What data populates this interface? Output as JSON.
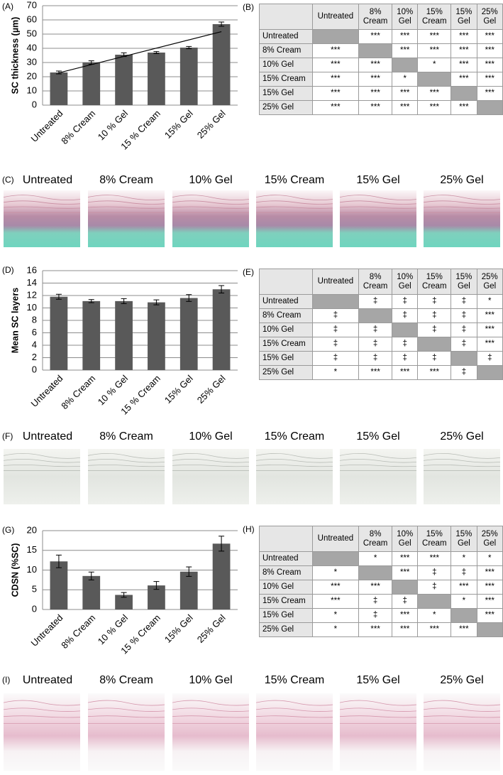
{
  "chart_data": [
    {
      "type": "bar",
      "label": "(A)",
      "y_label": "SC thickness (µm)",
      "categories": [
        "Untreated",
        "8% Cream",
        "10 % Gel",
        "15 % Cream",
        "15% Gel",
        "25% Gel"
      ],
      "values": [
        23,
        30,
        35.5,
        37,
        40.5,
        57
      ],
      "errors": [
        1,
        1.2,
        1.3,
        0.7,
        0.8,
        1.5
      ],
      "trendline": [
        22.7,
        51.7
      ],
      "color": "#595959",
      "ylim": [
        0,
        70
      ],
      "yticks": [
        0,
        10,
        20,
        30,
        40,
        50,
        60,
        70
      ],
      "grid": true
    },
    {
      "type": "bar",
      "label": "(D)",
      "y_label": "Mean SC layers",
      "categories": [
        "Untreated",
        "8% Cream",
        "10 % Gel",
        "15 % Cream",
        "15% Gel",
        "25% Gel"
      ],
      "values": [
        11.8,
        11.1,
        11.1,
        10.9,
        11.6,
        13.0
      ],
      "errors": [
        0.4,
        0.25,
        0.4,
        0.4,
        0.55,
        0.6
      ],
      "color": "#595959",
      "ylim": [
        0,
        16
      ],
      "yticks": [
        0,
        2,
        4,
        6,
        8,
        10,
        12,
        14,
        16
      ],
      "grid": true
    },
    {
      "type": "bar",
      "label": "(G)",
      "y_label": "CDSN (%SC)",
      "categories": [
        "Untreated",
        "8% Cream",
        "10 % Gel",
        "15 % Cream",
        "15% Gel",
        "25% Gel"
      ],
      "values": [
        12.2,
        8.5,
        3.7,
        6.1,
        9.6,
        16.7
      ],
      "errors": [
        1.6,
        1.0,
        0.6,
        1.0,
        1.2,
        1.9
      ],
      "color": "#595959",
      "ylim": [
        0,
        20
      ],
      "yticks": [
        0,
        5,
        10,
        15,
        20
      ],
      "grid": true
    }
  ],
  "tables": [
    {
      "label": "(B)",
      "columns": [
        "Untreated",
        "8% Cream",
        "10% Gel",
        "15% Cream",
        "15% Gel",
        "25% Gel"
      ],
      "rows": [
        {
          "label": "Untreated",
          "cells": [
            null,
            "***",
            "***",
            "***",
            "***",
            "***"
          ]
        },
        {
          "label": "8% Cream",
          "cells": [
            "***",
            null,
            "***",
            "***",
            "***",
            "***"
          ]
        },
        {
          "label": "10% Gel",
          "cells": [
            "***",
            "***",
            null,
            "*",
            "***",
            "***"
          ]
        },
        {
          "label": "15% Cream",
          "cells": [
            "***",
            "***",
            "*",
            null,
            "***",
            "***"
          ]
        },
        {
          "label": "15% Gel",
          "cells": [
            "***",
            "***",
            "***",
            "***",
            null,
            "***"
          ]
        },
        {
          "label": "25% Gel",
          "cells": [
            "***",
            "***",
            "***",
            "***",
            "***",
            null
          ]
        }
      ]
    },
    {
      "label": "(E)",
      "columns": [
        "Untreated",
        "8% Cream",
        "10% Gel",
        "15% Cream",
        "15% Gel",
        "25% Gel"
      ],
      "rows": [
        {
          "label": "Untreated",
          "cells": [
            null,
            "‡",
            "‡",
            "‡",
            "‡",
            "*"
          ]
        },
        {
          "label": "8% Cream",
          "cells": [
            "‡",
            null,
            "‡",
            "‡",
            "‡",
            "***"
          ]
        },
        {
          "label": "10% Gel",
          "cells": [
            "‡",
            "‡",
            null,
            "‡",
            "‡",
            "***"
          ]
        },
        {
          "label": "15% Cream",
          "cells": [
            "‡",
            "‡",
            "‡",
            null,
            "‡",
            "***"
          ]
        },
        {
          "label": "15% Gel",
          "cells": [
            "‡",
            "‡",
            "‡",
            "‡",
            null,
            "‡"
          ]
        },
        {
          "label": "25% Gel",
          "cells": [
            "*",
            "***",
            "***",
            "***",
            "‡",
            null
          ]
        }
      ]
    },
    {
      "label": "(H)",
      "columns": [
        "Untreated",
        "8% Cream",
        "10% Gel",
        "15% Cream",
        "15% Gel",
        "25% Gel"
      ],
      "rows": [
        {
          "label": "Untreated",
          "cells": [
            null,
            "*",
            "***",
            "***",
            "*",
            "*"
          ]
        },
        {
          "label": "8% Cream",
          "cells": [
            "*",
            null,
            "***",
            "‡",
            "‡",
            "***"
          ]
        },
        {
          "label": "10% Gel",
          "cells": [
            "***",
            "***",
            null,
            "‡",
            "***",
            "***"
          ]
        },
        {
          "label": "15% Cream",
          "cells": [
            "***",
            "‡",
            "‡",
            null,
            "*",
            "***"
          ]
        },
        {
          "label": "15% Gel",
          "cells": [
            "*",
            "‡",
            "***",
            "*",
            null,
            "***"
          ]
        },
        {
          "label": "25% Gel",
          "cells": [
            "*",
            "***",
            "***",
            "***",
            "***",
            null
          ]
        }
      ]
    }
  ],
  "image_rows": [
    {
      "label": "(C)",
      "captions": [
        "Untreated",
        "8% Cream",
        "10% Gel",
        "15% Cream",
        "15% Gel",
        "25% Gel"
      ]
    },
    {
      "label": "(F)",
      "captions": [
        "Untreated",
        "8% Cream",
        "10% Gel",
        "15% Cream",
        "15% Gel",
        "25% Gel"
      ]
    },
    {
      "label": "(I)",
      "captions": [
        "Untreated",
        "8% Cream",
        "10% Gel",
        "15% Cream",
        "15% Gel",
        "25% Gel"
      ]
    }
  ]
}
